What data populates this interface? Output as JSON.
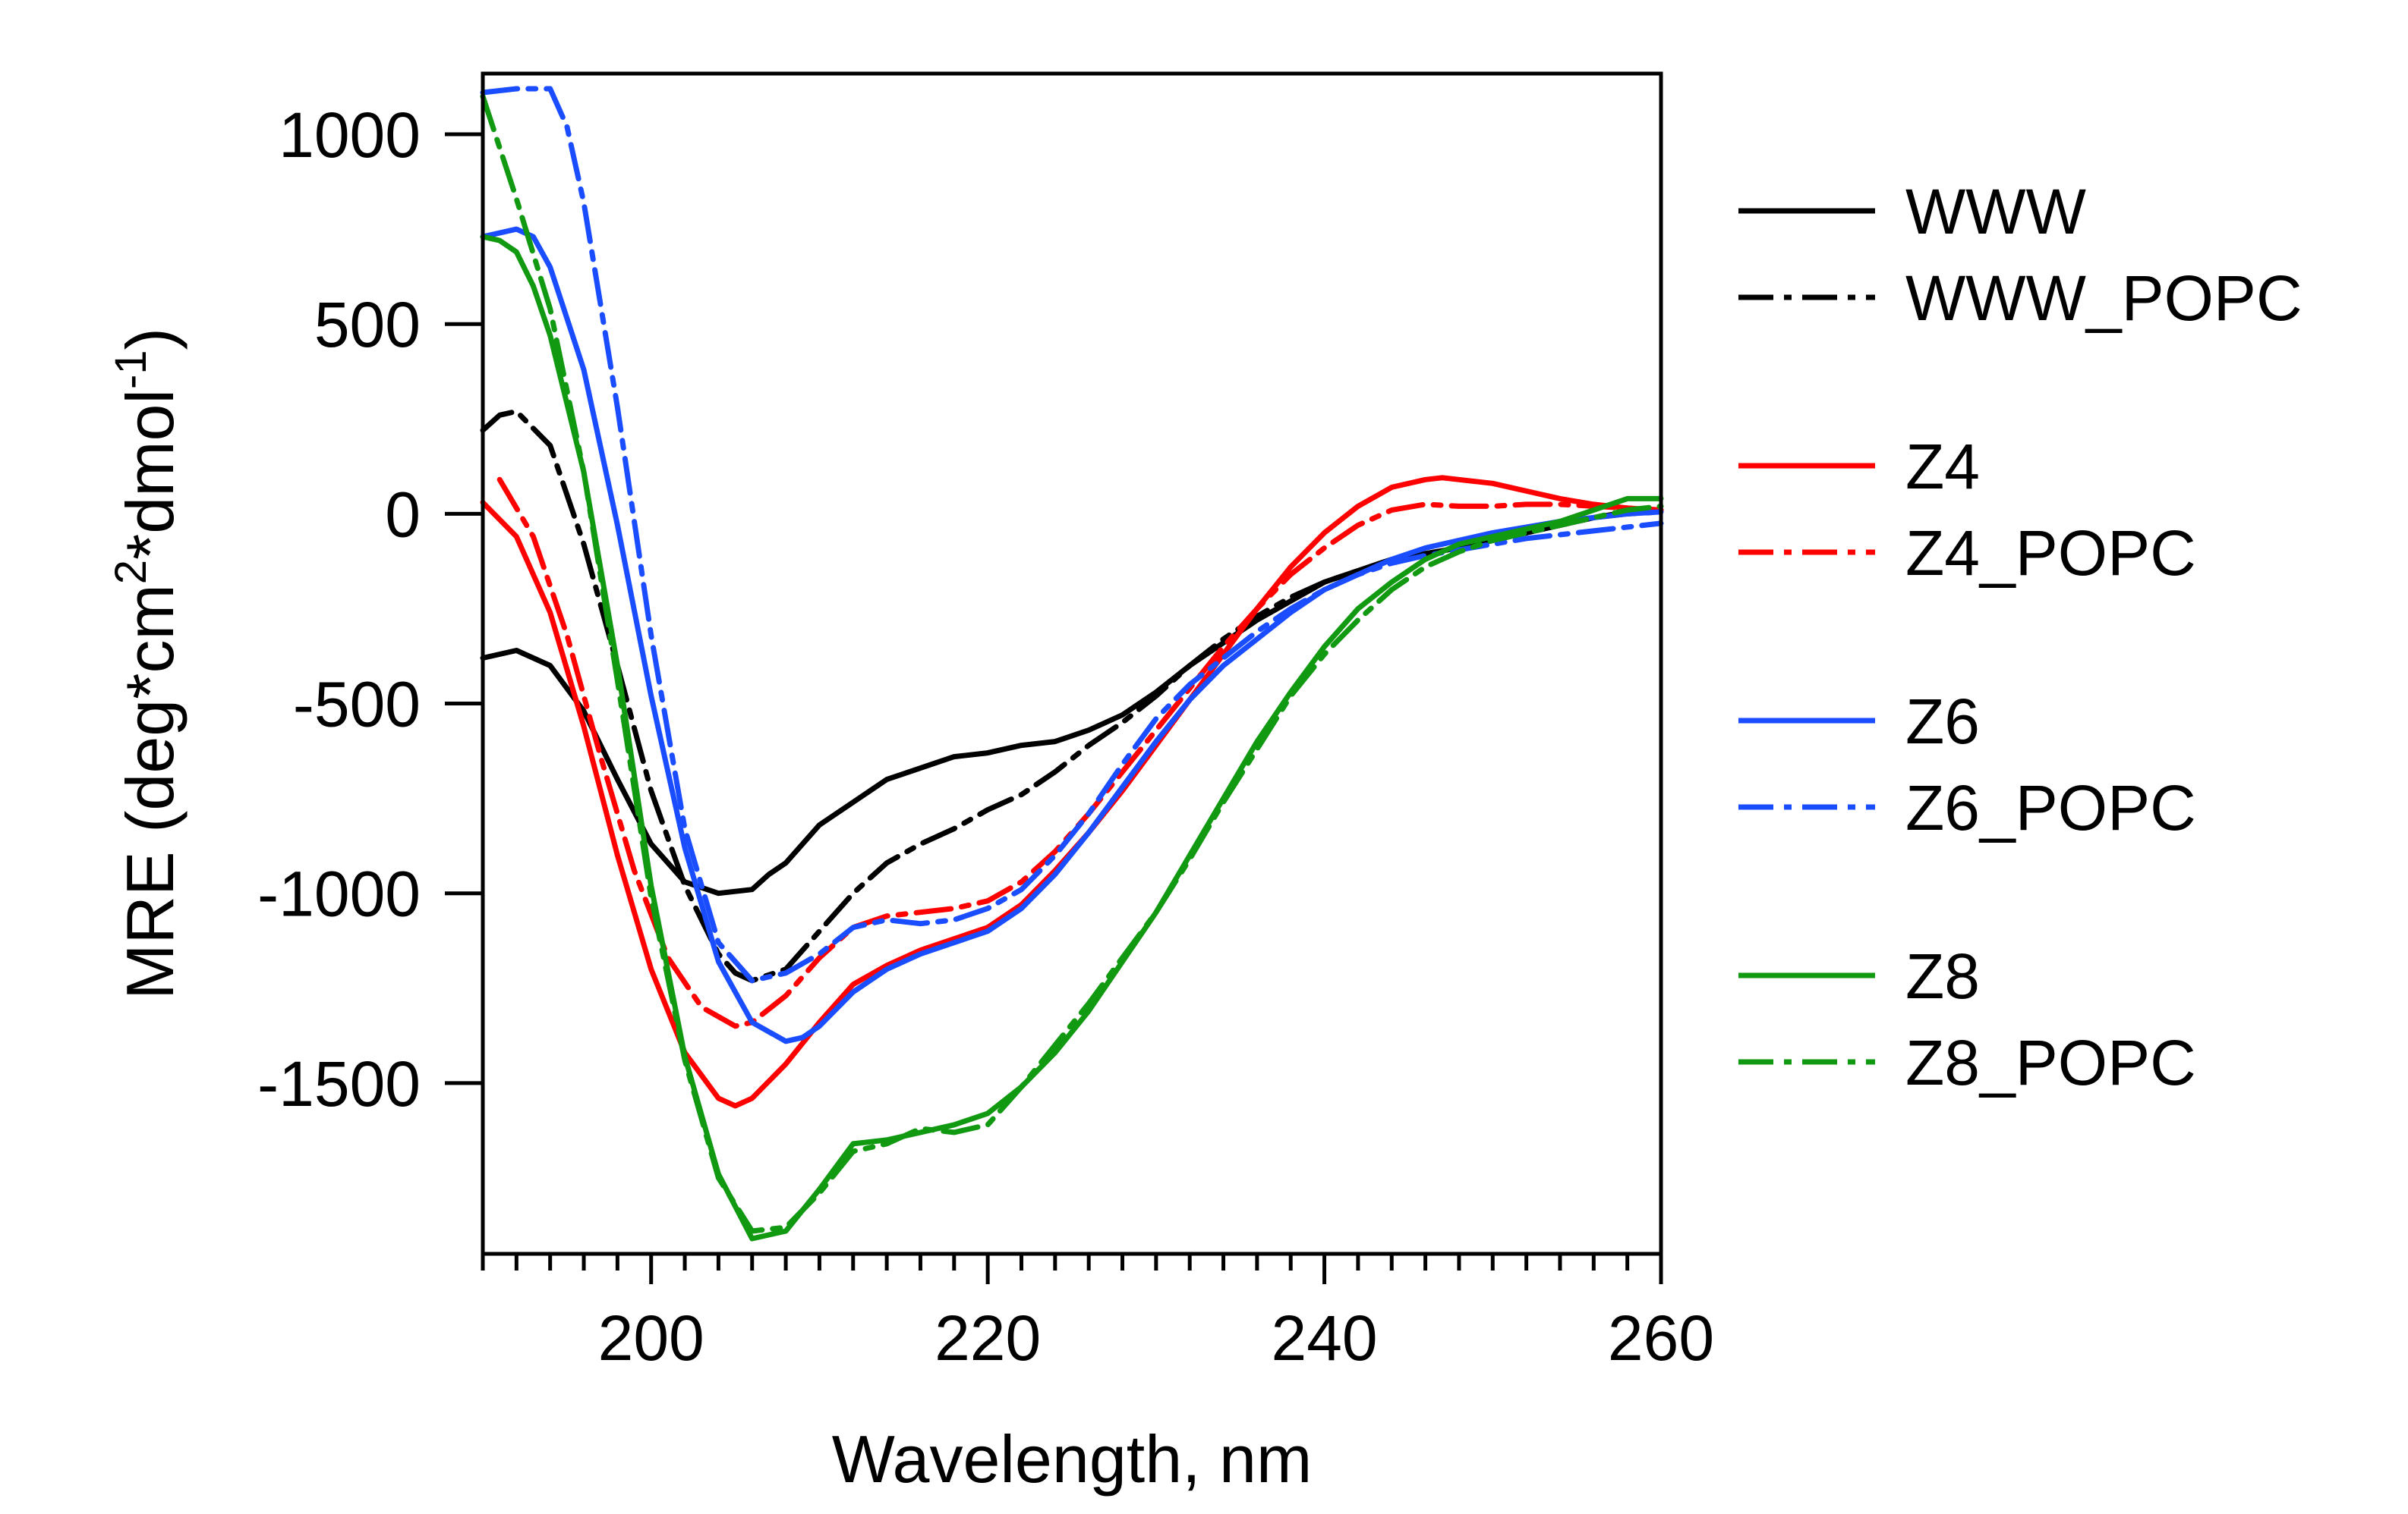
{
  "chart_data": {
    "type": "line",
    "title": "",
    "xlabel": "Wavelength, nm",
    "ylabel": "MRE (deg*cm2*dmol-1)",
    "ylabel_parts": [
      "MRE (deg*cm",
      "2",
      "*dmol",
      "-1",
      ")"
    ],
    "xlim": [
      190,
      260
    ],
    "ylim": [
      -1950,
      1160
    ],
    "x_ticks": [
      200,
      220,
      240,
      260
    ],
    "x_tick_labels": [
      "200",
      "220",
      "240",
      "260"
    ],
    "y_ticks": [
      1000,
      500,
      0,
      -500,
      -1000,
      -1500
    ],
    "y_tick_labels": [
      "1000",
      "500",
      "0",
      "-500",
      "-1000",
      "-1500"
    ],
    "x_minor_step": 2,
    "grid": false,
    "legend_position": "right",
    "series": [
      {
        "name": "WWW",
        "color": "#000000",
        "dash": "solid",
        "x": [
          190,
          192,
          194,
          196,
          198,
          200,
          202,
          204,
          206,
          207,
          208,
          210,
          212,
          214,
          216,
          218,
          220,
          222,
          224,
          226,
          228,
          230,
          232,
          234,
          236,
          238,
          240,
          242,
          244,
          246,
          248,
          250,
          252,
          254,
          256,
          258,
          260
        ],
        "y": [
          -380,
          -360,
          -400,
          -520,
          -700,
          -870,
          -970,
          -1000,
          -990,
          -950,
          -920,
          -820,
          -760,
          -700,
          -670,
          -640,
          -630,
          -610,
          -600,
          -570,
          -530,
          -470,
          -400,
          -340,
          -280,
          -230,
          -180,
          -150,
          -120,
          -105,
          -90,
          -70,
          -50,
          -30,
          -10,
          5,
          10
        ]
      },
      {
        "name": "WWW_POPC",
        "color": "#000000",
        "dash": "dashdot",
        "x": [
          190,
          191,
          192,
          194,
          196,
          198,
          200,
          202,
          204,
          205,
          206,
          208,
          210,
          212,
          214,
          216,
          218,
          220,
          222,
          224,
          226,
          228,
          230,
          232,
          234,
          236,
          238,
          240,
          242,
          244,
          246,
          248,
          250,
          252,
          254,
          256,
          258,
          260
        ],
        "y": [
          220,
          260,
          270,
          180,
          -80,
          -400,
          -730,
          -980,
          -1160,
          -1210,
          -1230,
          -1200,
          -1100,
          -1000,
          -920,
          -870,
          -830,
          -780,
          -740,
          -680,
          -610,
          -550,
          -480,
          -400,
          -330,
          -270,
          -220,
          -180,
          -150,
          -120,
          -105,
          -90,
          -70,
          -50,
          -30,
          -10,
          0,
          5
        ]
      },
      {
        "name": "Z4",
        "color": "#ff0000",
        "dash": "solid",
        "x": [
          190,
          192,
          194,
          196,
          198,
          200,
          202,
          204,
          205,
          206,
          208,
          210,
          212,
          214,
          216,
          218,
          220,
          222,
          224,
          226,
          228,
          230,
          232,
          234,
          236,
          238,
          240,
          242,
          244,
          246,
          247,
          248,
          250,
          252,
          254,
          256,
          258,
          260
        ],
        "y": [
          30,
          -60,
          -260,
          -560,
          -900,
          -1200,
          -1420,
          -1540,
          -1560,
          -1540,
          -1450,
          -1340,
          -1240,
          -1190,
          -1150,
          -1120,
          -1090,
          -1030,
          -940,
          -840,
          -730,
          -610,
          -490,
          -370,
          -250,
          -140,
          -50,
          20,
          70,
          90,
          95,
          90,
          80,
          60,
          40,
          25,
          15,
          10
        ]
      },
      {
        "name": "Z4_POPC",
        "color": "#ff0000",
        "dash": "dashdot",
        "x": [
          191,
          193,
          195,
          197,
          199,
          201,
          203,
          205,
          206,
          208,
          210,
          212,
          214,
          216,
          218,
          220,
          222,
          224,
          226,
          228,
          230,
          232,
          234,
          236,
          238,
          240,
          242,
          244,
          246,
          248,
          250,
          252,
          254,
          256,
          258,
          260
        ],
        "y": [
          90,
          -60,
          -320,
          -640,
          -940,
          -1170,
          -1300,
          -1350,
          -1340,
          -1270,
          -1170,
          -1090,
          -1060,
          -1050,
          -1040,
          -1020,
          -970,
          -890,
          -790,
          -680,
          -570,
          -460,
          -350,
          -250,
          -160,
          -90,
          -30,
          10,
          25,
          20,
          20,
          25,
          25,
          20,
          15,
          10
        ]
      },
      {
        "name": "Z6",
        "color": "#1a4dff",
        "dash": "solid",
        "x": [
          190,
          191,
          192,
          193,
          194,
          196,
          198,
          200,
          202,
          204,
          206,
          208,
          209,
          210,
          212,
          214,
          216,
          218,
          220,
          222,
          224,
          226,
          228,
          230,
          232,
          234,
          236,
          238,
          240,
          242,
          244,
          246,
          248,
          250,
          252,
          254,
          256,
          258,
          260
        ],
        "y": [
          730,
          740,
          750,
          730,
          650,
          380,
          -30,
          -480,
          -880,
          -1180,
          -1340,
          -1390,
          -1380,
          -1350,
          -1260,
          -1200,
          -1160,
          -1130,
          -1100,
          -1040,
          -950,
          -840,
          -720,
          -600,
          -490,
          -400,
          -330,
          -260,
          -200,
          -160,
          -120,
          -90,
          -70,
          -50,
          -35,
          -20,
          -10,
          0,
          5
        ]
      },
      {
        "name": "Z6_POPC",
        "color": "#1a4dff",
        "dash": "dashdot",
        "x": [
          190,
          192,
          194,
          195,
          196,
          198,
          200,
          202,
          204,
          206,
          208,
          210,
          212,
          214,
          216,
          218,
          220,
          222,
          224,
          226,
          228,
          230,
          232,
          234,
          236,
          238,
          240,
          242,
          244,
          246,
          248,
          250,
          252,
          254,
          256,
          258,
          260
        ],
        "y": [
          1110,
          1120,
          1120,
          1020,
          820,
          280,
          -320,
          -830,
          -1130,
          -1230,
          -1210,
          -1160,
          -1090,
          -1070,
          -1080,
          -1070,
          -1040,
          -990,
          -900,
          -790,
          -660,
          -540,
          -450,
          -380,
          -310,
          -250,
          -200,
          -160,
          -130,
          -110,
          -95,
          -80,
          -65,
          -55,
          -45,
          -35,
          -25
        ]
      },
      {
        "name": "Z8",
        "color": "#119911",
        "dash": "solid",
        "x": [
          190,
          191,
          192,
          193,
          194,
          196,
          198,
          200,
          202,
          204,
          206,
          208,
          210,
          212,
          214,
          216,
          218,
          220,
          222,
          224,
          226,
          228,
          230,
          232,
          234,
          236,
          238,
          240,
          242,
          244,
          246,
          248,
          250,
          252,
          254,
          256,
          258,
          260
        ],
        "y": [
          730,
          720,
          690,
          600,
          470,
          110,
          -400,
          -980,
          -1430,
          -1740,
          -1910,
          -1890,
          -1780,
          -1660,
          -1650,
          -1630,
          -1610,
          -1580,
          -1510,
          -1420,
          -1310,
          -1180,
          -1050,
          -900,
          -750,
          -600,
          -470,
          -350,
          -250,
          -180,
          -120,
          -80,
          -60,
          -40,
          -20,
          10,
          40,
          40
        ]
      },
      {
        "name": "Z8_POPC",
        "color": "#119911",
        "dash": "dashdot",
        "x": [
          190,
          192,
          194,
          196,
          198,
          200,
          202,
          204,
          206,
          208,
          210,
          212,
          214,
          216,
          218,
          220,
          222,
          224,
          226,
          228,
          230,
          232,
          234,
          236,
          238,
          240,
          242,
          244,
          246,
          248,
          250,
          252,
          254,
          256,
          258,
          260
        ],
        "y": [
          1100,
          830,
          540,
          110,
          -440,
          -1010,
          -1440,
          -1750,
          -1890,
          -1880,
          -1790,
          -1680,
          -1660,
          -1620,
          -1630,
          -1610,
          -1510,
          -1400,
          -1290,
          -1170,
          -1050,
          -910,
          -760,
          -620,
          -480,
          -370,
          -280,
          -200,
          -140,
          -100,
          -70,
          -50,
          -30,
          -10,
          10,
          20
        ]
      }
    ]
  }
}
